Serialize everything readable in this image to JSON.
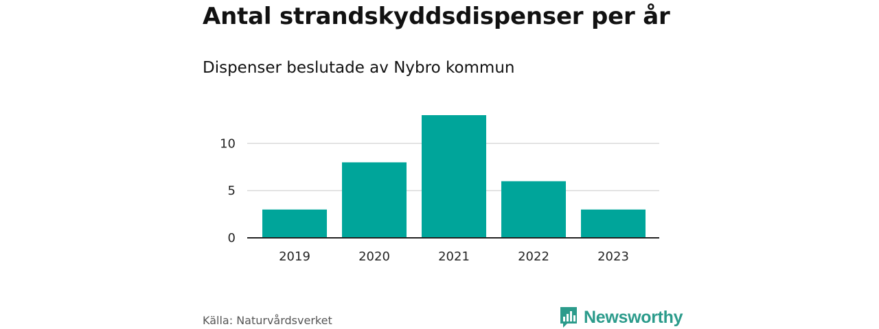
{
  "title": "Antal strandskyddsdispenser per år",
  "subtitle": "Dispenser beslutade av Nybro kommun",
  "source": "Källa: Naturvårdsverket",
  "brand": "Newsworthy",
  "colors": {
    "bar": "#00a59a",
    "grid": "#d9d9d9",
    "axis": "#222222",
    "brand": "#2b9b8b"
  },
  "chart_data": {
    "type": "bar",
    "title": "Antal strandskyddsdispenser per år",
    "subtitle": "Dispenser beslutade av Nybro kommun",
    "categories": [
      "2019",
      "2020",
      "2021",
      "2022",
      "2023"
    ],
    "values": [
      3,
      8,
      13,
      6,
      3
    ],
    "xlabel": "",
    "ylabel": "",
    "ylim": [
      0,
      13
    ],
    "yticks": [
      0,
      5,
      10
    ],
    "grid": true,
    "legend": "none"
  }
}
